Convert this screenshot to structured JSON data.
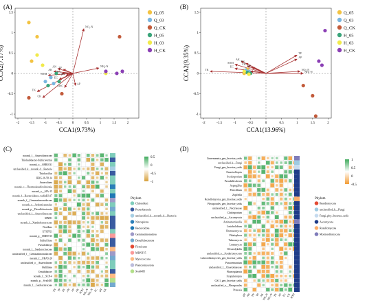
{
  "panels": {
    "A": {
      "letter": "(A)",
      "xlabel": "CCA1(9.73%)",
      "ylabel": "CCA2(7.17%)",
      "xticks": [
        "-2",
        "-1.5",
        "-1",
        "-0.5",
        "0",
        "0.5",
        "1",
        "1.5",
        "2",
        "2.5"
      ],
      "yticks": [
        "1.5",
        "1",
        "0.5",
        "0",
        "-0.5",
        "-1"
      ],
      "arrows": [
        {
          "label": "NO₃-N",
          "x": 0.4,
          "y": 1.1
        },
        {
          "label": "NH₄-N",
          "x": 0.95,
          "y": 0.13
        },
        {
          "label": "AP",
          "x": 0.1,
          "y": -0.3
        },
        {
          "label": "SOM",
          "x": -0.9,
          "y": -0.05
        },
        {
          "label": "AK",
          "x": -0.7,
          "y": 0.05
        },
        {
          "label": "AN",
          "x": -0.55,
          "y": 0.12
        },
        {
          "label": "TP",
          "x": -0.35,
          "y": 0.1
        },
        {
          "label": "TN",
          "x": -0.4,
          "y": 0.0
        },
        {
          "label": "pH",
          "x": -0.25,
          "y": -0.05
        },
        {
          "label": "EC",
          "x": -0.5,
          "y": -0.15
        },
        {
          "label": "TK",
          "x": -1.3,
          "y": -0.45
        },
        {
          "label": "CK",
          "x": -1.1,
          "y": -0.6
        },
        {
          "label": "SWC",
          "x": -0.3,
          "y": -0.35
        }
      ],
      "points": [
        {
          "g": "Q_05",
          "x": -1.6,
          "y": 1.25
        },
        {
          "g": "Q_05",
          "x": -1.3,
          "y": 0.9
        },
        {
          "g": "Q_05",
          "x": -1.5,
          "y": 0.3
        },
        {
          "g": "Q_03",
          "x": -1.0,
          "y": -0.2
        },
        {
          "g": "Q_03",
          "x": -0.7,
          "y": -0.25
        },
        {
          "g": "Q_03",
          "x": -0.8,
          "y": -0.1
        },
        {
          "g": "Q_CK",
          "x": -0.4,
          "y": -0.5
        },
        {
          "g": "Q_CK",
          "x": -1.6,
          "y": -0.6
        },
        {
          "g": "Q_CK",
          "x": 1.7,
          "y": 0.9
        },
        {
          "g": "H_05",
          "x": -0.6,
          "y": 0.0
        },
        {
          "g": "H_05",
          "x": -0.9,
          "y": -0.3
        },
        {
          "g": "H_05",
          "x": -0.5,
          "y": -0.2
        },
        {
          "g": "H_03",
          "x": -1.3,
          "y": 0.45
        },
        {
          "g": "H_03",
          "x": -1.1,
          "y": 0.2
        },
        {
          "g": "H_03",
          "x": 1.2,
          "y": 0.0
        },
        {
          "g": "H_CK",
          "x": 1.6,
          "y": 0.0
        },
        {
          "g": "H_CK",
          "x": 1.8,
          "y": 0.05
        },
        {
          "g": "H_CK",
          "x": 1.2,
          "y": 0.05
        }
      ]
    },
    "B": {
      "letter": "(B)",
      "xlabel": "CCA1(13.96%)",
      "ylabel": "CCA2(9.35%)",
      "xticks": [
        "-2",
        "-1.5",
        "-1",
        "-0.5",
        "0",
        "0.5",
        "1",
        "1.5",
        "2"
      ],
      "yticks": [
        "1.5",
        "1",
        "0.5",
        "0",
        "-0.5",
        "-1"
      ],
      "arrows": [
        {
          "label": "TP",
          "x": 1.0,
          "y": 0.45
        },
        {
          "label": "AP",
          "x": 1.0,
          "y": 0.35
        },
        {
          "label": "NO₃-N",
          "x": 1.1,
          "y": 0.05
        },
        {
          "label": "NH₄-N",
          "x": 1.2,
          "y": 0.0
        },
        {
          "label": "TK",
          "x": -1.8,
          "y": 0.05
        },
        {
          "label": "SOM",
          "x": -1.0,
          "y": 0.22
        },
        {
          "label": "AK",
          "x": -0.8,
          "y": 0.3
        },
        {
          "label": "TN",
          "x": -0.65,
          "y": 0.25
        },
        {
          "label": "CK",
          "x": -0.6,
          "y": 0.18
        },
        {
          "label": "EC",
          "x": -1.0,
          "y": 0.12
        },
        {
          "label": "pH",
          "x": -0.45,
          "y": 0.15
        },
        {
          "label": "SWC",
          "x": -0.5,
          "y": 0.05
        }
      ],
      "points": [
        {
          "g": "Q_05",
          "x": -0.6,
          "y": 0.1
        },
        {
          "g": "Q_05",
          "x": -0.7,
          "y": 0.0
        },
        {
          "g": "Q_03",
          "x": -0.55,
          "y": 0.05
        },
        {
          "g": "Q_03",
          "x": -0.65,
          "y": 0.08
        },
        {
          "g": "Q_CK",
          "x": 1.5,
          "y": -0.55
        },
        {
          "g": "Q_CK",
          "x": 1.6,
          "y": -1.05
        },
        {
          "g": "Q_CK",
          "x": 1.2,
          "y": -0.3
        },
        {
          "g": "H_05",
          "x": -0.6,
          "y": 0.02
        },
        {
          "g": "H_05",
          "x": -0.5,
          "y": 0.0
        },
        {
          "g": "H_03",
          "x": -0.7,
          "y": 0.05
        },
        {
          "g": "H_03",
          "x": -0.55,
          "y": -0.02
        },
        {
          "g": "H_CK",
          "x": 1.9,
          "y": 1.05
        },
        {
          "g": "H_CK",
          "x": 1.7,
          "y": 0.3
        },
        {
          "g": "H_CK",
          "x": 1.8,
          "y": 0.2
        }
      ]
    },
    "C": {
      "letter": "(C)",
      "rows": [
        "norank_f__Anaerolineaceae",
        "Thiohalobacter-Sulfurivermis",
        "norank_o__SBR1031",
        "unclassified_k__norank_d__Bacteria",
        "Thiobacillus",
        "RBG-16-58-14",
        "Anaerolinea",
        "norank_c__Thermodesulfovibrionia",
        "norank_o__SJA-15",
        "norank_f__Bacteroidetes_vadinHA17",
        "norank_f__Gemmatimonadaceae",
        "norank_o__Ardenticatenales",
        "norank_p__Desulfobacterota",
        "unclassified_f__Anaerolineaceae",
        "MND1",
        "norank_f__Xanthobacteraceae",
        "Nocilbax",
        "UTCFX1",
        "norank_p__MBNT15",
        "Sulfurifiexa",
        "Pseudolabrys",
        "norank_f__Sandaracinaceae",
        "unclassified_f__Geminatimonadaceae",
        "norank_f__UBA5-20",
        "unclassified_o__Anaerolineae",
        "Bellilinea",
        "Ornithibacter",
        "norank_f__SC8-4",
        "norank_p__Sva0485",
        "norank_f__Geobacteraceae"
      ],
      "cols": [
        "TN",
        "TP",
        "TK",
        "AN",
        "AP",
        "AK",
        "SOM",
        "NH₄-N",
        "NO₃-N",
        "EC",
        "pH",
        "CK"
      ],
      "phylum_title": "Phylum",
      "phyla": [
        {
          "name": "Chloroflexi",
          "color": "#7fcdbb"
        },
        {
          "name": "Proteobacteria",
          "color": "#3a5ba0"
        },
        {
          "name": "unclassified_k__norank_d__Bacteria",
          "color": "#a6cee3"
        },
        {
          "name": "Nitrospirota",
          "color": "#2c7fb8"
        },
        {
          "name": "Bacteroidota",
          "color": "#1f78b4"
        },
        {
          "name": "Gemmatimonadota",
          "color": "#9e9ac8"
        },
        {
          "name": "Desulfobacterota",
          "color": "#74a9cf"
        },
        {
          "name": "Firmicutes",
          "color": "#e34a33"
        },
        {
          "name": "MBNT15",
          "color": "#fb9a99"
        },
        {
          "name": "Myxococcota",
          "color": "#fdbb84"
        },
        {
          "name": "Planctomycetota",
          "color": "#bcbddc"
        },
        {
          "name": "Sva0485",
          "color": "#b2df8a"
        }
      ],
      "scale": [
        "0.5",
        "0",
        "-0.5",
        "-1"
      ]
    },
    "D": {
      "letter": "(D)",
      "rows": [
        "Linnemannia_gen_Incertae_sedis",
        "unclassified_k__Fungi",
        "Fungi_gen_Incertae_sedis",
        "Emericellopsis",
        "Scedosporium",
        "Pseudallescheria",
        "Aspergillus",
        "Penicillium",
        "Zopfiella",
        "Rozellomycota_gen_Incertae_sedis",
        "Pleosporales_gen_Incertae_sedis",
        "unclassified_f__Nectriaceae",
        "Cladosporium",
        "unclassified_p__Ascomycota",
        "Actinomortierella",
        "Lasiobolidium",
        "Brunneomyces",
        "Phialophora",
        "Talaromyces",
        "Lentzmyces",
        "Westerdykella",
        "unclassified_o__Sordariomycetes",
        "Lulworthiomycetes_gen_Incertae_sedis",
        "Paracremonium",
        "unclassified_f__Chaetomiaceae",
        "Phaeosphaeria",
        "Scopulariopsis",
        "GS11_gen_Incertae_sedis",
        "unclassified_o__Pleosporales",
        "Preussia"
      ],
      "cols": [
        "pH",
        "AN",
        "TN",
        "TP",
        "AK",
        "NH₄-N",
        "NO₃-N",
        "TK",
        "AP",
        "EC",
        "CK",
        "SOM"
      ],
      "phylum_title": "Phylum",
      "phyla": [
        {
          "name": "Basidiomycota",
          "color": "#e34a33"
        },
        {
          "name": "unclassified_k__Fungi",
          "color": "#9ecae1"
        },
        {
          "name": "Fungi_phy_Incertae_sedis",
          "color": "#c6dbef"
        },
        {
          "name": "Ascomycota",
          "color": "#1f3c88"
        },
        {
          "name": "Rozellomycota",
          "color": "#fdae6b"
        },
        {
          "name": "Mortierellomycota",
          "color": "#807dba"
        }
      ],
      "scale": [
        "1",
        "0.5",
        "0",
        "-0.5"
      ]
    }
  },
  "legend_groups": [
    {
      "name": "Q_05",
      "color": "#f3c342"
    },
    {
      "name": "Q_03",
      "color": "#7ab6e0"
    },
    {
      "name": "Q_CK",
      "color": "#c25a3a"
    },
    {
      "name": "H_05",
      "color": "#3aa57a"
    },
    {
      "name": "H_03",
      "color": "#f1ea4a"
    },
    {
      "name": "H_CK",
      "color": "#8b3fb5"
    }
  ]
}
